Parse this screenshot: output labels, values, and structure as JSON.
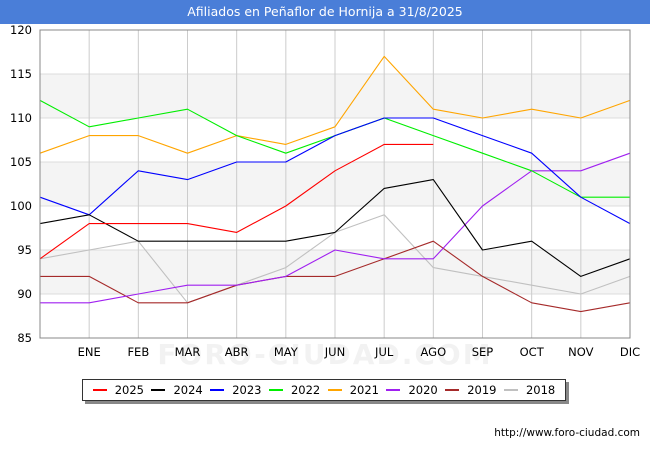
{
  "title": "Afiliados en Peñaflor de Hornija a 31/8/2025",
  "source": "http://www.foro-ciudad.com",
  "watermark": "FORO-CIUDAD.COM",
  "chart_data": {
    "type": "line",
    "title": "Afiliados en Peñaflor de Hornija a 31/8/2025",
    "xlabel": "",
    "ylabel": "",
    "categories": [
      "",
      "ENE",
      "FEB",
      "MAR",
      "ABR",
      "MAY",
      "JUN",
      "JUL",
      "AGO",
      "SEP",
      "OCT",
      "NOV",
      "DIC"
    ],
    "ylim": [
      85,
      120
    ],
    "yticks": [
      85,
      90,
      95,
      100,
      105,
      110,
      115,
      120
    ],
    "grid": true,
    "legend_position": "bottom",
    "series": [
      {
        "name": "2025",
        "color": "#ff0000",
        "values": [
          94,
          98,
          98,
          98,
          97,
          100,
          104,
          107,
          107,
          null,
          null,
          null,
          null
        ]
      },
      {
        "name": "2024",
        "color": "#000000",
        "values": [
          98,
          99,
          96,
          96,
          96,
          96,
          97,
          102,
          103,
          95,
          96,
          92,
          94
        ]
      },
      {
        "name": "2023",
        "color": "#0000ff",
        "values": [
          101,
          99,
          104,
          103,
          105,
          105,
          108,
          110,
          110,
          108,
          106,
          101,
          98
        ]
      },
      {
        "name": "2022",
        "color": "#00ee00",
        "values": [
          112,
          109,
          110,
          111,
          108,
          106,
          108,
          110,
          108,
          106,
          104,
          101,
          101
        ]
      },
      {
        "name": "2021",
        "color": "#ffa500",
        "values": [
          106,
          108,
          108,
          106,
          108,
          107,
          109,
          117,
          111,
          110,
          111,
          110,
          112
        ]
      },
      {
        "name": "2020",
        "color": "#a020f0",
        "values": [
          89,
          89,
          90,
          91,
          91,
          92,
          95,
          94,
          94,
          100,
          104,
          104,
          106
        ]
      },
      {
        "name": "2019",
        "color": "#a52a2a",
        "values": [
          92,
          92,
          89,
          89,
          91,
          92,
          92,
          94,
          96,
          92,
          89,
          88,
          89
        ]
      },
      {
        "name": "2018",
        "color": "#c0c0c0",
        "values": [
          94,
          95,
          96,
          89,
          91,
          93,
          97,
          99,
          93,
          92,
          91,
          90,
          92
        ]
      }
    ]
  }
}
